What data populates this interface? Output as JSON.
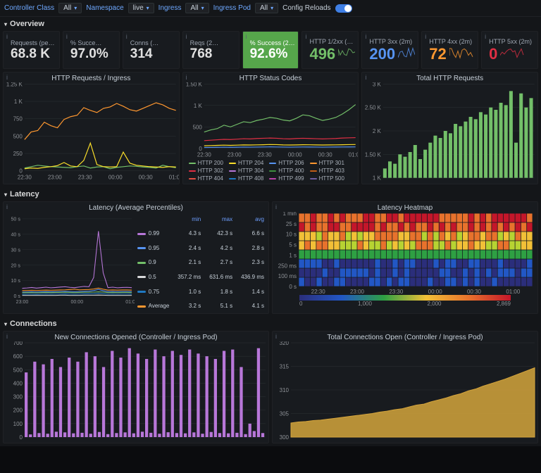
{
  "toolbar": {
    "controller_class": {
      "label": "Controller Class",
      "value": "All"
    },
    "namespace": {
      "label": "Namespace",
      "value": "live"
    },
    "ingress": {
      "label": "Ingress",
      "value": "All"
    },
    "ingress_pod": {
      "label": "Ingress Pod",
      "value": "All"
    },
    "config_reloads": {
      "label": "Config Reloads",
      "enabled": true
    }
  },
  "sections": {
    "overview": "Overview",
    "latency": "Latency",
    "connections": "Connections"
  },
  "colors": {
    "bg": "#0b0c0e",
    "panel": "#181b1f",
    "border": "#202226",
    "text": "#d8d9da",
    "text_muted": "#8e9297",
    "link": "#6ea8ff",
    "green": "#56a64b",
    "line_green": "#73bf69",
    "line_orange": "#ff9830",
    "line_yellow": "#fade2a",
    "line_red": "#e02f44",
    "line_blue": "#5794f2",
    "line_purple": "#b877d9",
    "bar_green": "#73bf69",
    "bar_purple": "#b877d9",
    "area_gold": "#d4a43c"
  },
  "overview_stats": [
    {
      "id": "requests-period",
      "title": "Requests (period)",
      "value": "68.8 K"
    },
    {
      "id": "success-period",
      "title": "% Succe…",
      "value": "97.0%"
    },
    {
      "id": "conns",
      "title": "Conns (…",
      "value": "314"
    },
    {
      "id": "reqs-2m",
      "title": "Reqs (2…",
      "value": "768"
    },
    {
      "id": "success-2m",
      "title": "% Success (2m)",
      "value": "92.6%",
      "highlight": "green"
    },
    {
      "id": "http-12xx",
      "title": "HTTP 1/2xx (2m)",
      "value": "496",
      "color": "green",
      "spark": true
    },
    {
      "id": "http-3xx",
      "title": "HTTP 3xx (2m)",
      "value": "200",
      "color": "blue",
      "spark": true
    },
    {
      "id": "http-4xx",
      "title": "HTTP 4xx (2m)",
      "value": "72",
      "color": "orange",
      "spark": true
    },
    {
      "id": "http-5xx",
      "title": "HTTP 5xx (2m)",
      "value": "0",
      "color": "red",
      "spark": true
    }
  ],
  "http_requests_ingress": {
    "title": "HTTP Requests / Ingress",
    "x_ticks": [
      "22:30",
      "23:00",
      "23:30",
      "00:00",
      "00:30",
      "01:00"
    ],
    "y_ticks": [
      "1.25 K",
      "1 K",
      "750",
      "500",
      "250",
      "0"
    ],
    "ylim": [
      0,
      1250
    ],
    "series": [
      {
        "color": "#ff9830",
        "values": [
          450,
          560,
          580,
          700,
          650,
          620,
          740,
          780,
          800,
          910,
          870,
          840,
          900,
          920,
          970,
          930,
          880,
          860,
          900,
          940,
          980,
          950,
          900,
          870
        ],
        "type": "line"
      },
      {
        "color": "#73bf69",
        "values": [
          40,
          60,
          80,
          70,
          60,
          55,
          50,
          45,
          60,
          70,
          40,
          55,
          60,
          30,
          50,
          60,
          70,
          65,
          55,
          50,
          40,
          80,
          60,
          45
        ],
        "type": "line"
      },
      {
        "color": "#fade2a",
        "values": [
          30,
          40,
          35,
          50,
          60,
          75,
          120,
          70,
          60,
          150,
          400,
          90,
          60,
          55,
          60,
          270,
          110,
          80,
          70,
          60,
          55,
          50,
          60,
          55
        ],
        "type": "line"
      }
    ]
  },
  "http_status_codes": {
    "title": "HTTP Status Codes",
    "x_ticks": [
      "22:30",
      "23:00",
      "23:30",
      "00:00",
      "00:30",
      "01:00"
    ],
    "y_ticks": [
      "1.50 K",
      "1 K",
      "500",
      "0"
    ],
    "ylim": [
      0,
      1500
    ],
    "series": [
      {
        "color": "#73bf69",
        "values": [
          380,
          430,
          460,
          540,
          500,
          560,
          620,
          600,
          650,
          680,
          720,
          700,
          660,
          640,
          700,
          780,
          760,
          700,
          650,
          680,
          720,
          800,
          900,
          1020
        ]
      },
      {
        "color": "#e02f44",
        "values": [
          180,
          190,
          200,
          210,
          205,
          215,
          225,
          220,
          230,
          235,
          240,
          235,
          225,
          220,
          230,
          235,
          230,
          225,
          220,
          225,
          230,
          240,
          245,
          250
        ]
      },
      {
        "color": "#fade2a",
        "values": [
          60,
          65,
          70,
          75,
          70,
          75,
          80,
          78,
          82,
          85,
          90,
          88,
          80,
          78,
          80,
          85,
          84,
          80,
          78,
          80,
          82,
          85,
          88,
          90
        ]
      },
      {
        "color": "#5794f2",
        "values": [
          20,
          22,
          25,
          28,
          25,
          27,
          30,
          28,
          30,
          32,
          35,
          32,
          30,
          28,
          30,
          32,
          31,
          30,
          28,
          30,
          31,
          32,
          33,
          34
        ]
      }
    ],
    "legend": [
      {
        "name": "HTTP 200",
        "color": "#73bf69"
      },
      {
        "name": "HTTP 204",
        "color": "#fade2a"
      },
      {
        "name": "HTTP 206",
        "color": "#5794f2"
      },
      {
        "name": "HTTP 301",
        "color": "#ff9830"
      },
      {
        "name": "HTTP 302",
        "color": "#e02f44"
      },
      {
        "name": "HTTP 304",
        "color": "#b877d9"
      },
      {
        "name": "HTTP 400",
        "color": "#3e8f3e"
      },
      {
        "name": "HTTP 403",
        "color": "#c15c17"
      },
      {
        "name": "HTTP 404",
        "color": "#e24d42"
      },
      {
        "name": "HTTP 408",
        "color": "#1f78c1"
      },
      {
        "name": "HTTP 499",
        "color": "#ba43a9"
      },
      {
        "name": "HTTP 500",
        "color": "#705da0"
      },
      {
        "name": "HTTP 502",
        "color": "#508642"
      },
      {
        "name": "HTTP 503",
        "color": "#cca300"
      },
      {
        "name": "HTTP 504",
        "color": "#447ebc"
      }
    ]
  },
  "total_http_requests": {
    "title": "Total HTTP Requests",
    "y_ticks": [
      "3 K",
      "2.50 K",
      "2 K",
      "1.50 K",
      "1 K"
    ],
    "ylim": [
      1000,
      3000
    ],
    "bar_color": "#73bf69",
    "values": [
      1200,
      1350,
      1300,
      1500,
      1450,
      1550,
      1700,
      1400,
      1600,
      1750,
      1900,
      1850,
      2000,
      1950,
      2150,
      2100,
      2200,
      2300,
      2250,
      2400,
      2350,
      2500,
      2450,
      2600,
      2550,
      2850,
      1750,
      2800,
      2500,
      2700
    ]
  },
  "latency_percentiles": {
    "title": "Latency (Average Percentiles)",
    "x_ticks": [
      "23:00",
      "00:00",
      "01:00"
    ],
    "y_ticks": [
      "50 s",
      "40 s",
      "30 s",
      "20 s",
      "10 s",
      "0 s"
    ],
    "ylim": [
      0,
      50
    ],
    "series": [
      {
        "name": "0.99",
        "color": "#b877d9",
        "min": "4.3 s",
        "max": "42.3 s",
        "avg": "6.6 s",
        "values": [
          5.0,
          5.2,
          5.5,
          5.1,
          5.4,
          5.7,
          5.3,
          5.5,
          5.8,
          6.0,
          5.6,
          5.4,
          5.8,
          6.2,
          6.0,
          12.0,
          42.0,
          15.0,
          5.4,
          5.7,
          5.3,
          5.5,
          5.6,
          5.4
        ]
      },
      {
        "name": "0.95",
        "color": "#5794f2",
        "min": "2.4 s",
        "max": "4.2 s",
        "avg": "2.8 s",
        "values": [
          2.5,
          2.6,
          2.7,
          2.6,
          2.7,
          2.8,
          2.7,
          2.8,
          2.9,
          3.0,
          2.9,
          2.8,
          2.9,
          3.0,
          3.1,
          3.5,
          4.2,
          3.4,
          2.8,
          2.9,
          2.8,
          2.9,
          2.9,
          2.8
        ]
      },
      {
        "name": "0.9",
        "color": "#73bf69",
        "min": "2.1 s",
        "max": "2.7 s",
        "avg": "2.3 s",
        "values": [
          2.1,
          2.2,
          2.2,
          2.1,
          2.2,
          2.3,
          2.2,
          2.3,
          2.3,
          2.4,
          2.3,
          2.2,
          2.3,
          2.4,
          2.4,
          2.5,
          2.7,
          2.5,
          2.2,
          2.3,
          2.2,
          2.3,
          2.3,
          2.2
        ]
      },
      {
        "name": "0.5",
        "color": "#d8d9da",
        "min": "357.2 ms",
        "max": "631.6 ms",
        "avg": "436.9 ms",
        "values": [
          0.4,
          0.4,
          0.4,
          0.4,
          0.4,
          0.4,
          0.4,
          0.4,
          0.5,
          0.5,
          0.4,
          0.4,
          0.4,
          0.5,
          0.5,
          0.5,
          0.6,
          0.5,
          0.4,
          0.4,
          0.4,
          0.4,
          0.4,
          0.4
        ]
      },
      {
        "name": "0.75",
        "color": "#1f78c1",
        "min": "1.0 s",
        "max": "1.8 s",
        "avg": "1.4 s",
        "values": [
          1.1,
          1.2,
          1.2,
          1.1,
          1.2,
          1.3,
          1.2,
          1.3,
          1.3,
          1.4,
          1.3,
          1.2,
          1.3,
          1.4,
          1.4,
          1.5,
          1.8,
          1.5,
          1.2,
          1.3,
          1.2,
          1.3,
          1.3,
          1.2
        ]
      },
      {
        "name": "Average",
        "color": "#ff9830",
        "min": "3.2 s",
        "max": "5.1 s",
        "avg": "4.1 s",
        "values": [
          3.5,
          3.6,
          3.7,
          3.6,
          3.7,
          3.8,
          3.7,
          3.8,
          3.9,
          4.0,
          4.2,
          4.4,
          4.0,
          4.1,
          4.2,
          4.5,
          5.1,
          4.4,
          3.8,
          3.9,
          3.8,
          3.9,
          3.9,
          3.8
        ]
      }
    ],
    "table_headers": [
      "",
      "min",
      "max",
      "avg"
    ]
  },
  "latency_heatmap": {
    "title": "Latency Heatmap",
    "x_ticks": [
      "22:30",
      "23:00",
      "23:30",
      "00:00",
      "00:30",
      "01:00"
    ],
    "y_ticks": [
      "1 min",
      "25 s",
      "10 s",
      "5 s",
      "1 s",
      "250 ms",
      "100 ms",
      "0 s"
    ],
    "palette": [
      "#2b2e7b",
      "#2257c5",
      "#2b83ba",
      "#2ea043",
      "#b7d332",
      "#f2c037",
      "#e8722c",
      "#c4162a"
    ],
    "legend_labels": [
      "0",
      "1,000",
      "2,000",
      "2,869"
    ],
    "cols": 40,
    "rows": 8
  },
  "new_connections": {
    "title": "New Connections Opened (Controller / Ingress Pod)",
    "y_ticks": [
      "700",
      "600",
      "500",
      "400",
      "300",
      "200",
      "100",
      "0"
    ],
    "ylim": [
      0,
      700
    ],
    "bar_color": "#b877d9",
    "values": [
      480,
      20,
      560,
      30,
      540,
      25,
      580,
      40,
      520,
      35,
      590,
      28,
      560,
      32,
      630,
      25,
      600,
      38,
      520,
      22,
      640,
      30,
      590,
      35,
      660,
      28,
      620,
      40,
      580,
      32,
      650,
      25,
      600,
      36,
      640,
      30,
      610,
      28,
      650,
      35,
      620,
      25,
      600,
      38,
      580,
      30,
      640,
      28,
      650,
      32,
      520,
      22,
      100,
      45,
      660,
      30
    ]
  },
  "total_connections": {
    "title": "Total Connections Open (Controller / Ingress Pod)",
    "y_ticks": [
      "320",
      "315",
      "310",
      "305",
      "300"
    ],
    "ylim": [
      300,
      320
    ],
    "area_color": "#d4a43c",
    "values": [
      303,
      303.2,
      303.3,
      303.5,
      303.6,
      303.8,
      304.0,
      304.2,
      304.4,
      304.6,
      304.8,
      305.0,
      305.3,
      305.5,
      305.8,
      306.0,
      306.4,
      306.8,
      307.0,
      307.5,
      307.9,
      308.3,
      308.8,
      309.2,
      309.8,
      310.2,
      310.8,
      311.3,
      311.8,
      312.3,
      312.9,
      313.5,
      314.1,
      314.7
    ]
  }
}
